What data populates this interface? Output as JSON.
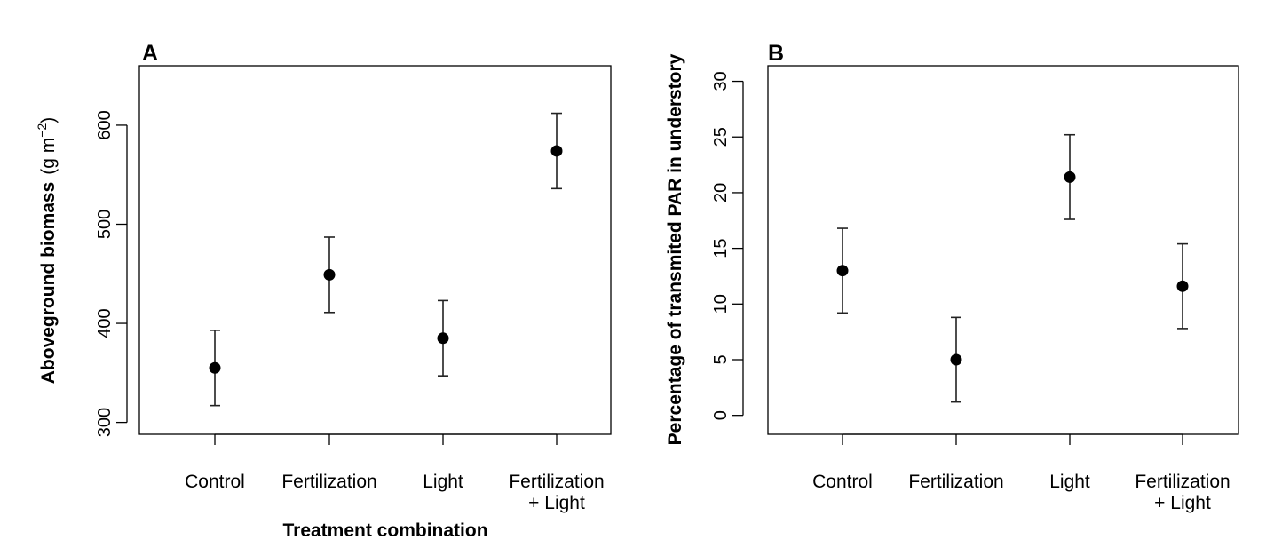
{
  "chart_data": [
    {
      "type": "scatter",
      "panel_label": "A",
      "categories": [
        "Control",
        "Fertilization",
        "Light",
        "Fertilization\n+ Light"
      ],
      "values": [
        355,
        449,
        385,
        574
      ],
      "error_low": [
        317,
        411,
        347,
        536
      ],
      "error_high": [
        393,
        487,
        423,
        612
      ],
      "ylabel": "Aboveground biomass",
      "ylabel_unit_main": "(g m",
      "ylabel_unit_sup": "−2",
      "ylabel_unit_end": ")",
      "xlabel": "Treatment combination",
      "yticks": [
        300,
        400,
        500,
        600
      ],
      "ylim": [
        288,
        660
      ],
      "grid": false,
      "legend": "none"
    },
    {
      "type": "scatter",
      "panel_label": "B",
      "categories": [
        "Control",
        "Fertilization",
        "Light",
        "Fertilization\n+ Light"
      ],
      "values": [
        13.0,
        5.0,
        21.4,
        11.6
      ],
      "error_low": [
        9.2,
        1.2,
        17.6,
        7.8
      ],
      "error_high": [
        16.8,
        8.8,
        25.2,
        15.4
      ],
      "ylabel": "Percentage of transmited PAR in understory",
      "xlabel": "",
      "yticks": [
        0,
        5,
        10,
        15,
        20,
        25,
        30
      ],
      "ylim": [
        -1.7,
        31.4
      ],
      "grid": false,
      "legend": "none"
    }
  ]
}
